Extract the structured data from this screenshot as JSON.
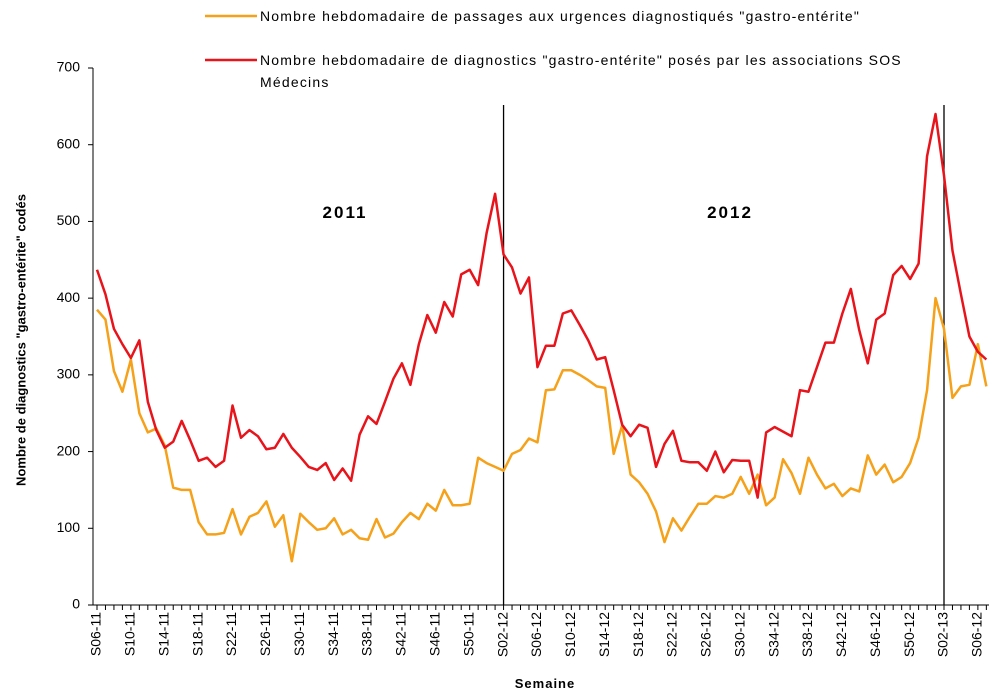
{
  "chart_data": {
    "type": "line",
    "y_label": "Nombre de diagnostics \"gastro-entérite\" codés",
    "x_label": "Semaine",
    "annotations": [
      "2011",
      "2012"
    ],
    "vlines": [
      "S02-12",
      "S02-13"
    ],
    "categories": [
      "S06-11",
      null,
      null,
      null,
      "S10-11",
      null,
      null,
      null,
      "S14-11",
      null,
      null,
      null,
      "S18-11",
      null,
      null,
      null,
      "S22-11",
      null,
      null,
      null,
      "S26-11",
      null,
      null,
      null,
      "S30-11",
      null,
      null,
      null,
      "S34-11",
      null,
      null,
      null,
      "S38-11",
      null,
      null,
      null,
      "S42-11",
      null,
      null,
      null,
      "S46-11",
      null,
      null,
      null,
      "S50-11",
      null,
      null,
      null,
      "S02-12",
      null,
      null,
      null,
      "S06-12",
      null,
      null,
      null,
      "S10-12",
      null,
      null,
      null,
      "S14-12",
      null,
      null,
      null,
      "S18-12",
      null,
      null,
      null,
      "S22-12",
      null,
      null,
      null,
      "S26-12",
      null,
      null,
      null,
      "S30-12",
      null,
      null,
      null,
      "S34-12",
      null,
      null,
      null,
      "S38-12",
      null,
      null,
      null,
      "S42-12",
      null,
      null,
      null,
      "S46-12",
      null,
      null,
      null,
      "S50-12",
      null,
      null,
      null,
      "S02-13",
      null,
      null,
      null,
      "S06-12",
      null
    ],
    "ylim": [
      0,
      700
    ],
    "yticks": [
      0,
      100,
      200,
      300,
      400,
      500,
      600,
      700
    ],
    "series": [
      {
        "name": "Nombre hebdomadaire de passages aux urgences diagnostiqués \"gastro-entérite\"",
        "color": "#f5a11a",
        "values": [
          385,
          372,
          305,
          278,
          320,
          250,
          225,
          230,
          208,
          153,
          150,
          150,
          108,
          92,
          92,
          94,
          125,
          92,
          115,
          120,
          135,
          102,
          117,
          57,
          119,
          108,
          98,
          100,
          113,
          92,
          98,
          87,
          85,
          112,
          88,
          93,
          108,
          120,
          112,
          132,
          123,
          150,
          130,
          130,
          132,
          192,
          185,
          180,
          175,
          197,
          202,
          217,
          212,
          280,
          281,
          306,
          306,
          300,
          293,
          285,
          283,
          197,
          234,
          170,
          160,
          145,
          122,
          82,
          113,
          97,
          115,
          132,
          132,
          142,
          140,
          145,
          167,
          145,
          170,
          130,
          140,
          190,
          172,
          145,
          192,
          170,
          152,
          158,
          142,
          152,
          148,
          195,
          170,
          183,
          160,
          167,
          185,
          218,
          280,
          400,
          360,
          270,
          285,
          287,
          340,
          285
        ]
      },
      {
        "name": "Nombre hebdomadaire de diagnostics \"gastro-entérite\" posés par les associations SOS Médecins",
        "color": "#e8141b",
        "values": [
          437,
          405,
          360,
          340,
          322,
          345,
          265,
          228,
          205,
          213,
          240,
          215,
          188,
          192,
          180,
          188,
          260,
          218,
          228,
          220,
          203,
          205,
          223,
          205,
          193,
          180,
          176,
          185,
          163,
          178,
          162,
          222,
          246,
          236,
          265,
          295,
          315,
          287,
          340,
          378,
          355,
          395,
          376,
          431,
          437,
          417,
          485,
          536,
          457,
          440,
          406,
          427,
          310,
          338,
          338,
          380,
          384,
          365,
          345,
          320,
          323,
          280,
          235,
          220,
          235,
          231,
          180,
          210,
          227,
          188,
          186,
          186,
          175,
          200,
          173,
          189,
          188,
          188,
          140,
          225,
          232,
          226,
          220,
          280,
          278,
          310,
          342,
          342,
          380,
          412,
          358,
          315,
          372,
          380,
          430,
          442,
          425,
          445,
          585,
          640,
          560,
          462,
          405,
          350,
          330,
          320
        ]
      }
    ]
  }
}
